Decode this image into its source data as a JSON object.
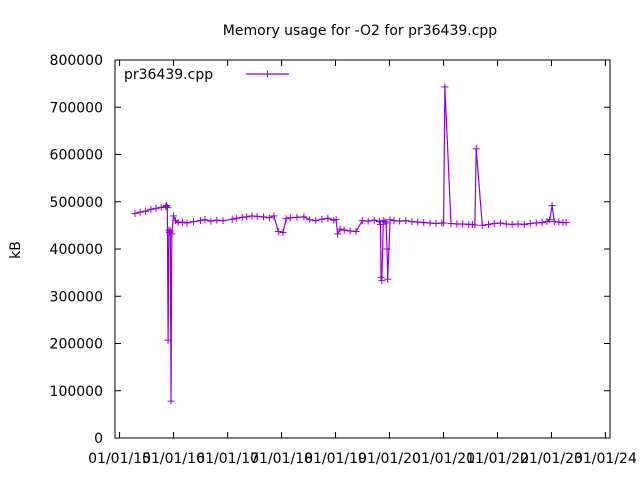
{
  "chart_data": {
    "type": "line",
    "title": "Memory usage for -O2 for pr36439.cpp",
    "xlabel": "",
    "ylabel": "kB",
    "ylim": [
      0,
      800000
    ],
    "y_ticks": [
      0,
      100000,
      200000,
      300000,
      400000,
      500000,
      600000,
      700000,
      800000
    ],
    "y_tick_labels": [
      "0",
      "100000",
      "200000",
      "300000",
      "400000",
      "500000",
      "600000",
      "700000",
      "800000"
    ],
    "x_ticks": [
      "2015-01-01",
      "2016-01-01",
      "2017-01-01",
      "2018-01-01",
      "2019-01-01",
      "2020-01-01",
      "2021-01-01",
      "2022-01-01",
      "2023-01-01",
      "2024-01-01"
    ],
    "x_tick_labels": [
      "01/01/15",
      "01/01/16",
      "01/01/17",
      "01/01/18",
      "01/01/19",
      "01/01/20",
      "01/01/21",
      "01/01/22",
      "01/01/23",
      "01/01/24"
    ],
    "xlim": [
      "2014-12-01",
      "2024-02-01"
    ],
    "grid": false,
    "legend_position": "top-left",
    "series": [
      {
        "name": "pr36439.cpp",
        "color": "#9400d3",
        "marker": "plus",
        "x": [
          "2015-04-15",
          "2015-05-20",
          "2015-06-25",
          "2015-08-01",
          "2015-09-05",
          "2015-10-10",
          "2015-11-10",
          "2015-11-15",
          "2015-11-20",
          "2015-11-25",
          "2015-12-01",
          "2015-12-05",
          "2015-12-10",
          "2015-12-15",
          "2015-12-20",
          "2016-01-01",
          "2016-01-15",
          "2016-02-01",
          "2016-03-01",
          "2016-04-01",
          "2016-05-15",
          "2016-07-01",
          "2016-08-01",
          "2016-09-10",
          "2016-10-20",
          "2016-12-01",
          "2017-02-01",
          "2017-03-01",
          "2017-04-10",
          "2017-05-10",
          "2017-06-15",
          "2017-07-20",
          "2017-09-01",
          "2017-10-10",
          "2017-11-10",
          "2017-12-10",
          "2018-01-10",
          "2018-02-01",
          "2018-03-01",
          "2018-04-15",
          "2018-06-01",
          "2018-07-10",
          "2018-08-20",
          "2018-10-01",
          "2018-11-10",
          "2018-12-20",
          "2019-01-05",
          "2019-01-15",
          "2019-02-01",
          "2019-03-01",
          "2019-04-10",
          "2019-05-20",
          "2019-07-01",
          "2019-08-10",
          "2019-09-20",
          "2019-10-25",
          "2019-11-01",
          "2019-11-05",
          "2019-11-10",
          "2019-11-20",
          "2019-12-01",
          "2019-12-10",
          "2019-12-15",
          "2019-12-20",
          "2020-01-05",
          "2020-02-01",
          "2020-03-10",
          "2020-04-20",
          "2020-06-01",
          "2020-07-10",
          "2020-08-20",
          "2020-10-01",
          "2020-11-10",
          "2020-12-20",
          "2021-01-01",
          "2021-01-10",
          "2021-02-20",
          "2021-04-01",
          "2021-05-10",
          "2021-06-20",
          "2021-07-15",
          "2021-08-01",
          "2021-08-10",
          "2021-09-20",
          "2021-11-01",
          "2021-12-10",
          "2022-01-20",
          "2022-03-01",
          "2022-04-10",
          "2022-05-20",
          "2022-07-01",
          "2022-08-10",
          "2022-09-20",
          "2022-10-30",
          "2022-12-01",
          "2022-12-20",
          "2023-01-05",
          "2023-01-20",
          "2023-02-20",
          "2023-03-20",
          "2023-04-10"
        ],
        "y": [
          475000,
          478000,
          480000,
          484000,
          486000,
          488000,
          490000,
          492000,
          488000,
          207000,
          440000,
          435000,
          438000,
          78000,
          432000,
          470000,
          460000,
          456000,
          457000,
          455000,
          458000,
          460000,
          462000,
          459000,
          461000,
          460000,
          463000,
          465000,
          467000,
          468000,
          470000,
          469000,
          468000,
          466000,
          470000,
          437000,
          435000,
          464000,
          466000,
          467000,
          468000,
          462000,
          460000,
          463000,
          465000,
          461000,
          462000,
          432000,
          442000,
          440000,
          438000,
          437000,
          460000,
          459000,
          461000,
          458000,
          452000,
          340000,
          333000,
          460000,
          458000,
          455000,
          400000,
          336000,
          462000,
          460000,
          459000,
          460000,
          458000,
          457000,
          456000,
          455000,
          454000,
          455000,
          455000,
          743000,
          454000,
          453000,
          453000,
          452000,
          452000,
          451000,
          612000,
          450000,
          452000,
          454000,
          455000,
          453000,
          452000,
          453000,
          452000,
          454000,
          455000,
          456000,
          458000,
          462000,
          492000,
          458000,
          457000,
          456000,
          456000
        ]
      }
    ]
  }
}
